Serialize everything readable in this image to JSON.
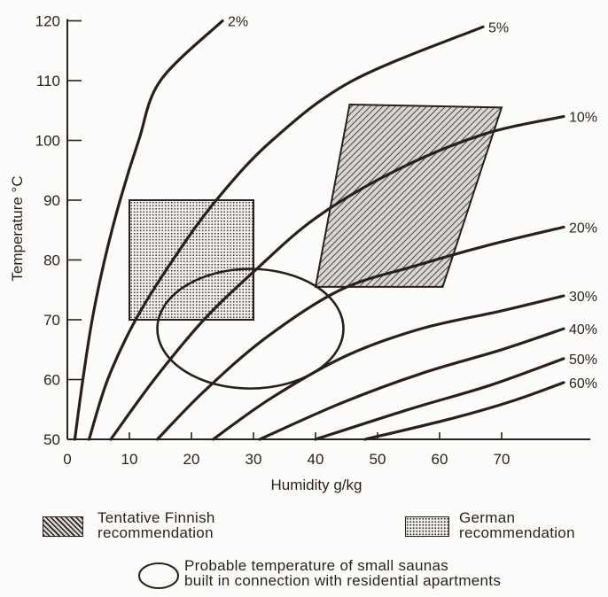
{
  "chart_data": {
    "type": "line",
    "xlabel": "Humidity g/kg",
    "ylabel": "Temperature °C",
    "xlim": [
      0,
      85
    ],
    "ylim": [
      50,
      120
    ],
    "x_ticks": [
      "0",
      "10",
      "20",
      "30",
      "40",
      "50",
      "60",
      "70"
    ],
    "y_ticks": [
      "50",
      "60",
      "70",
      "80",
      "90",
      "100",
      "110",
      "120"
    ],
    "grid": false,
    "series": [
      {
        "name": "2%",
        "points": [
          [
            1.2,
            50
          ],
          [
            2.5,
            60
          ],
          [
            4,
            70
          ],
          [
            6,
            80
          ],
          [
            8.5,
            90
          ],
          [
            11.5,
            100
          ],
          [
            15,
            110
          ],
          [
            25,
            120
          ]
        ]
      },
      {
        "name": "5%",
        "points": [
          [
            3.5,
            50
          ],
          [
            6.5,
            60
          ],
          [
            11,
            70
          ],
          [
            17,
            80
          ],
          [
            24,
            90
          ],
          [
            33,
            100
          ],
          [
            46,
            110
          ],
          [
            67,
            119
          ]
        ]
      },
      {
        "name": "10%",
        "points": [
          [
            7,
            50
          ],
          [
            14,
            60
          ],
          [
            22,
            70
          ],
          [
            30,
            78
          ],
          [
            40,
            87
          ],
          [
            53,
            95
          ],
          [
            67,
            101
          ],
          [
            80,
            104
          ]
        ]
      },
      {
        "name": "20%",
        "points": [
          [
            14.5,
            50
          ],
          [
            22,
            58
          ],
          [
            32,
            67
          ],
          [
            44,
            75
          ],
          [
            56,
            79
          ],
          [
            68,
            82.5
          ],
          [
            80,
            85.5
          ]
        ]
      },
      {
        "name": "30%",
        "points": [
          [
            23.5,
            50
          ],
          [
            33,
            57
          ],
          [
            45,
            64
          ],
          [
            57,
            68.5
          ],
          [
            70,
            71.5
          ],
          [
            80,
            74
          ]
        ]
      },
      {
        "name": "40%",
        "points": [
          [
            31,
            50
          ],
          [
            44,
            56
          ],
          [
            57,
            61
          ],
          [
            70,
            65
          ],
          [
            80,
            68.5
          ]
        ]
      },
      {
        "name": "50%",
        "points": [
          [
            40,
            50
          ],
          [
            55,
            55
          ],
          [
            68,
            59
          ],
          [
            80,
            63.5
          ]
        ]
      },
      {
        "name": "60%",
        "points": [
          [
            48,
            50
          ],
          [
            62,
            53.5
          ],
          [
            72,
            56.5
          ],
          [
            80,
            59.5
          ]
        ]
      }
    ],
    "regions": [
      {
        "name": "Tentative Finnish recommendation",
        "pattern": "diagonal-hatch",
        "polygon": [
          [
            40,
            75.5
          ],
          [
            60.5,
            75.5
          ],
          [
            70,
            105.5
          ],
          [
            45.5,
            106
          ]
        ]
      },
      {
        "name": "German recommendation",
        "pattern": "dots",
        "polygon": [
          [
            10,
            70
          ],
          [
            30,
            70
          ],
          [
            30,
            90
          ],
          [
            10,
            90
          ]
        ]
      },
      {
        "name": "Probable temperature of small saunas built in connection with residential apartments",
        "shape": "ellipse",
        "center": [
          29.5,
          68.5
        ],
        "radii": [
          15,
          10
        ]
      }
    ]
  },
  "legend": {
    "finnish_line1": "Tentative Finnish",
    "finnish_line2": "recommendation",
    "german_line1": "German",
    "german_line2": "recommendation",
    "saunas_line1": "Probable temperature of small saunas",
    "saunas_line2": "built in connection with residential apartments"
  },
  "colors": {
    "ink": "#2a1f1c",
    "background": "#fcfcfa"
  }
}
